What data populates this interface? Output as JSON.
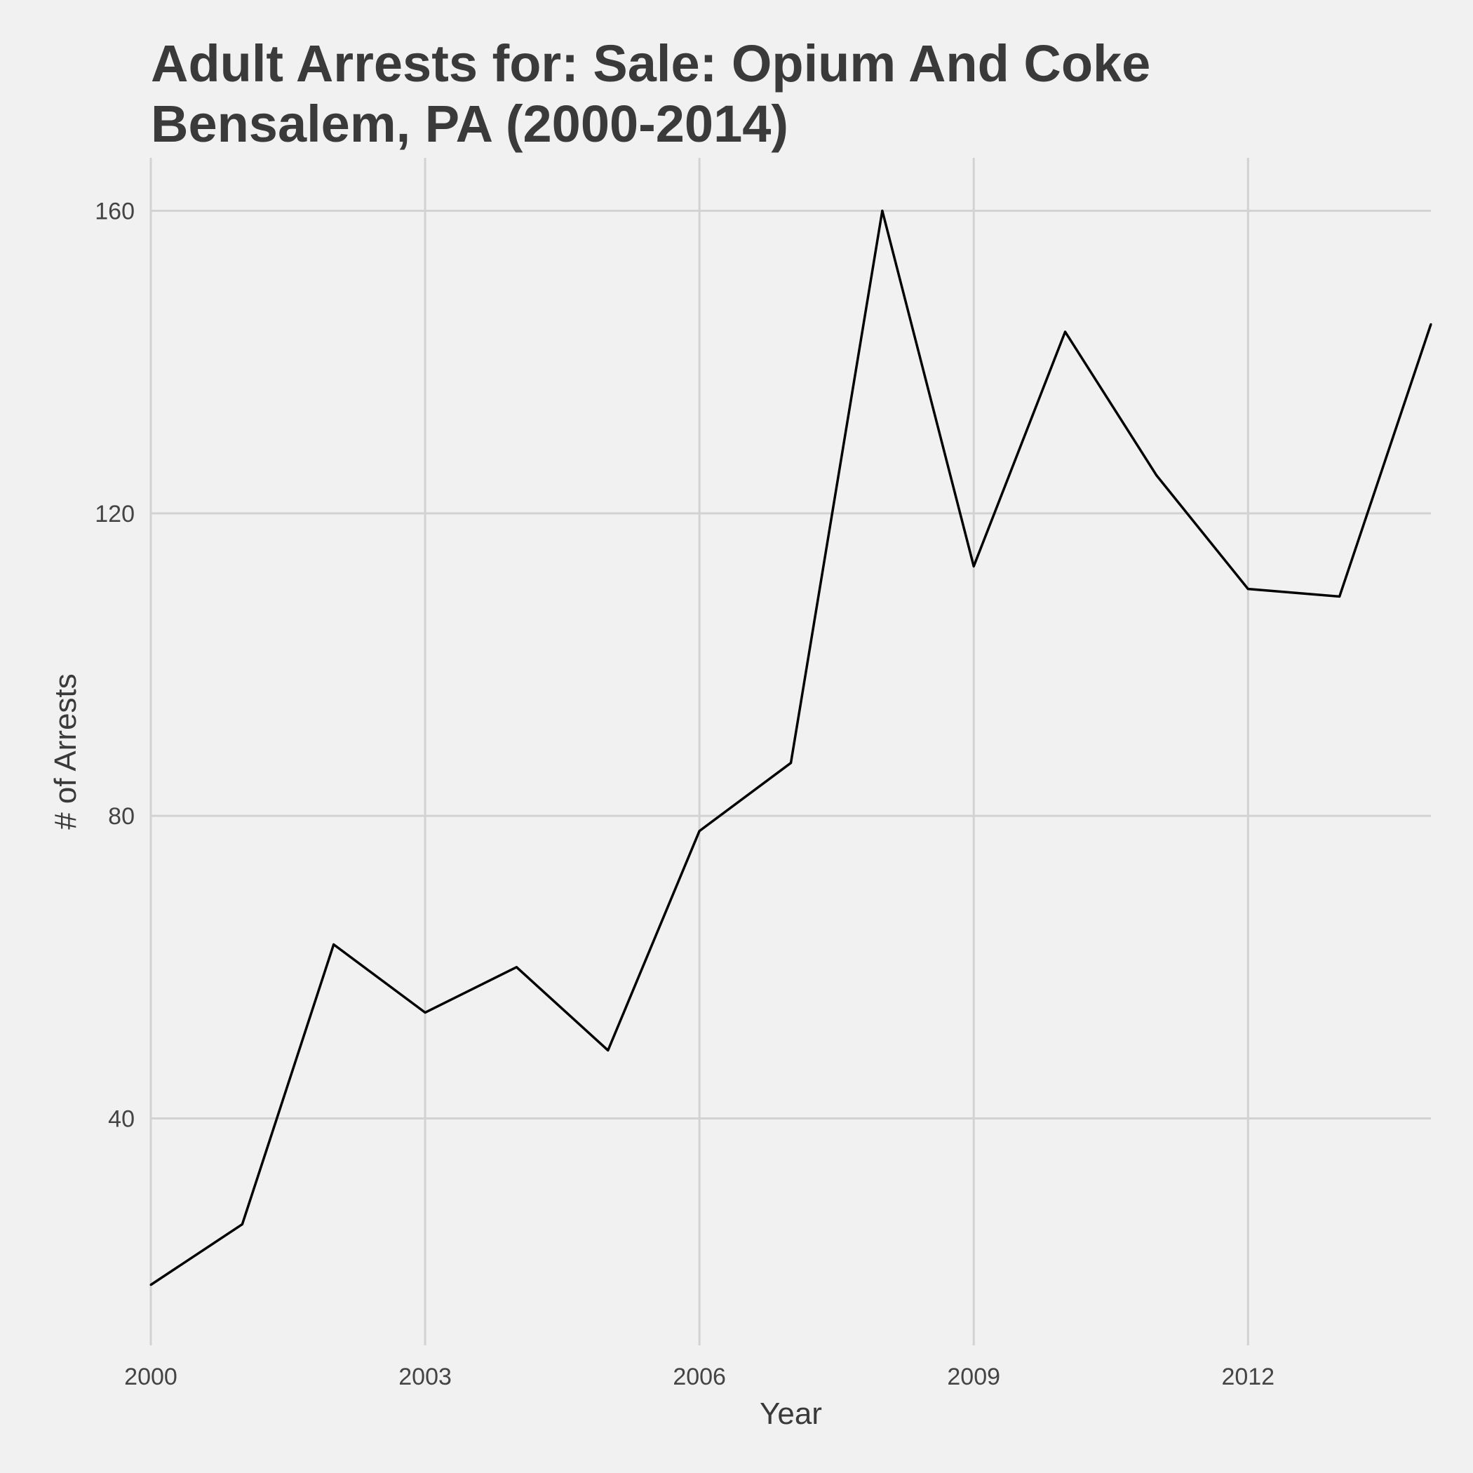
{
  "title_line1": "Adult Arrests for: Sale: Opium And Coke",
  "title_line2": "Bensalem, PA (2000-2014)",
  "chart_data": {
    "type": "line",
    "title": "Adult Arrests for: Sale: Opium And Coke Bensalem, PA (2000-2014)",
    "xlabel": "Year",
    "ylabel": "# of Arrests",
    "x": [
      2000,
      2001,
      2002,
      2003,
      2004,
      2005,
      2006,
      2007,
      2008,
      2009,
      2010,
      2011,
      2012,
      2013,
      2014
    ],
    "series": [
      {
        "values": [
          18,
          26,
          63,
          54,
          60,
          49,
          78,
          87,
          160,
          113,
          144,
          125,
          110,
          109,
          145
        ]
      }
    ],
    "xlim": [
      2000,
      2014
    ],
    "ylim": [
      10,
      167
    ],
    "xticks": [
      2000,
      2003,
      2006,
      2009,
      2012
    ],
    "yticks": [
      40,
      80,
      120,
      160
    ],
    "grid": true,
    "line_color": "#000000",
    "grid_color": "#d2d2d2"
  }
}
